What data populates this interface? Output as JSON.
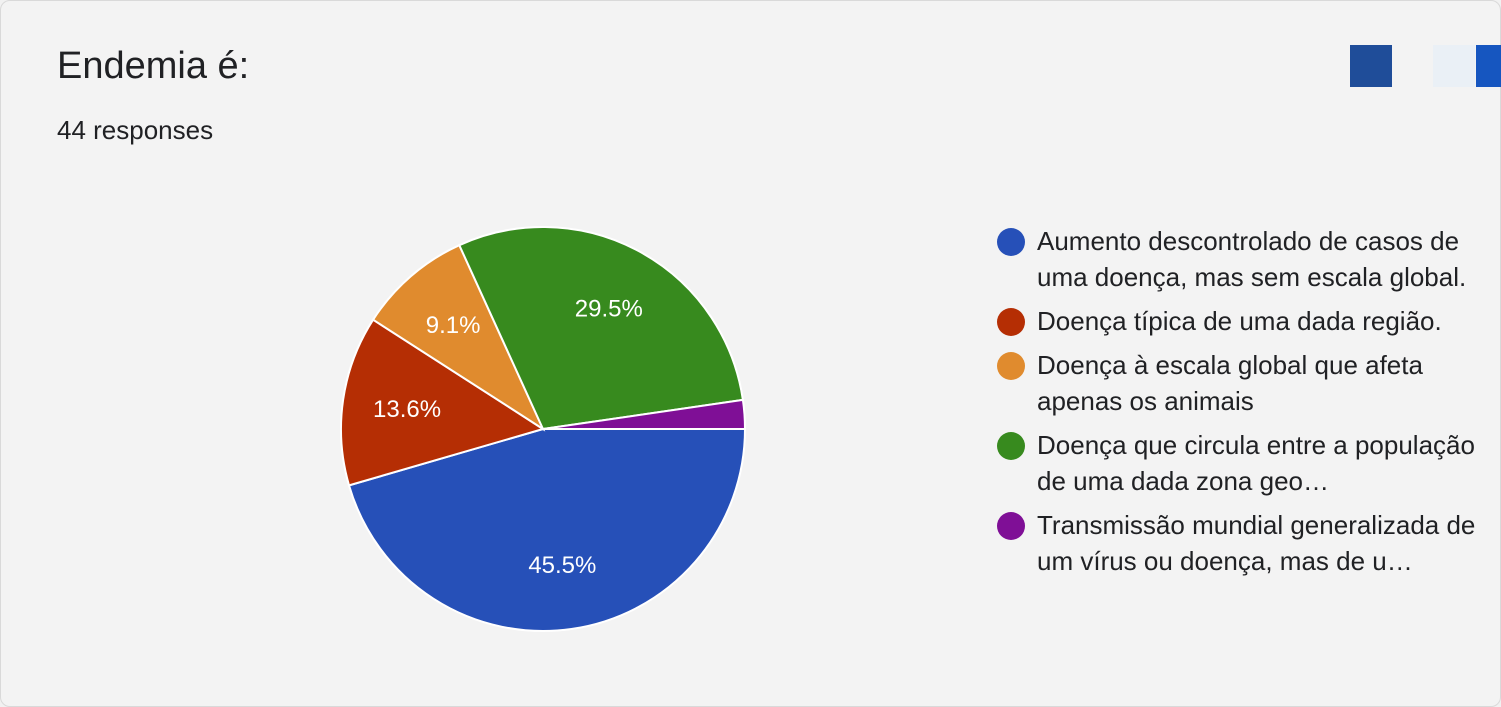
{
  "header": {
    "title": "Endemia é:",
    "response_count": "44 responses"
  },
  "colors": {
    "corner_a": "#1f4d99",
    "corner_b": "#eaf0f6",
    "corner_c": "#1656c0"
  },
  "chart_data": {
    "type": "pie",
    "slices": [
      {
        "label": "Aumento descontrolado de casos de uma doença, mas sem escala global.",
        "value": 45.5,
        "display": "45.5%",
        "color": "#2650b8"
      },
      {
        "label": "Doença típica de uma dada região.",
        "value": 13.6,
        "display": "13.6%",
        "color": "#b52e04"
      },
      {
        "label": "Doença à escala global que afeta apenas os animais",
        "value": 9.1,
        "display": "9.1%",
        "color": "#e08b2e"
      },
      {
        "label": "Doença que circula entre a população de uma dada zona geo…",
        "value": 29.5,
        "display": "29.5%",
        "color": "#378a1e"
      },
      {
        "label": "Transmissão mundial generalizada de um vírus ou doença, mas de u…",
        "value": 2.3,
        "display": "",
        "color": "#7f0f96"
      }
    ],
    "legend_position": "right"
  }
}
